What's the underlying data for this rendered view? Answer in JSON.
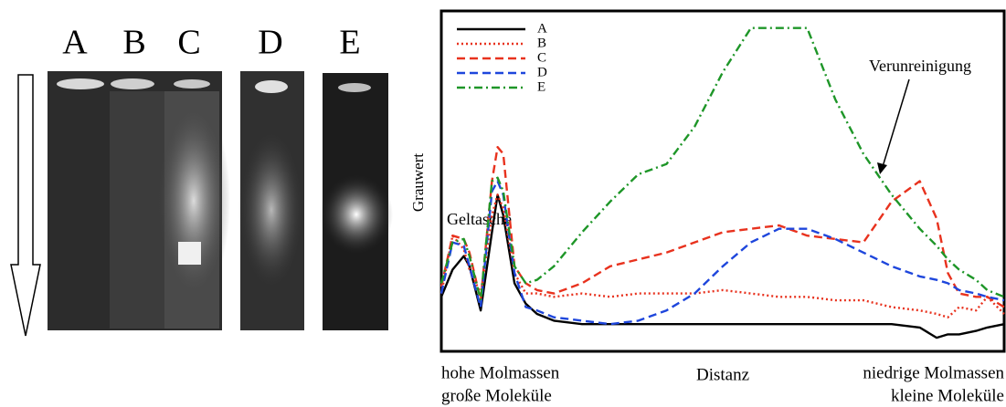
{
  "gel": {
    "lanes": [
      "A",
      "B",
      "C",
      "D",
      "E"
    ]
  },
  "chart_data": {
    "type": "line",
    "xlabel": "Distanz",
    "ylabel": "Grauwert",
    "x_end_labels": {
      "left": [
        "hohe Molmassen",
        "große Moleküle"
      ],
      "right": [
        "niedrige Molmassen",
        "kleine Moleküle"
      ]
    },
    "annotations": [
      "Geltasche",
      "Verunreinigung"
    ],
    "xlim": [
      0,
      100
    ],
    "ylim": [
      0,
      100
    ],
    "legend": "upper left",
    "x": [
      0,
      2,
      4,
      5,
      7,
      9,
      10,
      11,
      13,
      15,
      17,
      20,
      25,
      30,
      35,
      40,
      45,
      50,
      55,
      60,
      65,
      70,
      75,
      80,
      85,
      88,
      90,
      92,
      95,
      97,
      100
    ],
    "series": [
      {
        "name": "A",
        "color": "#000000",
        "linestyle": "solid",
        "values": [
          16,
          24,
          28,
          25,
          12,
          35,
          46,
          40,
          20,
          14,
          11,
          9,
          8,
          8,
          8,
          8,
          8,
          8,
          8,
          8,
          8,
          8,
          8,
          8,
          7,
          4,
          5,
          5,
          6,
          7,
          8
        ]
      },
      {
        "name": "B",
        "color": "#e8321e",
        "linestyle": "dotted",
        "values": [
          17,
          34,
          30,
          24,
          17,
          40,
          46,
          42,
          23,
          17,
          17,
          16,
          17,
          16,
          17,
          17,
          17,
          18,
          17,
          16,
          16,
          15,
          15,
          13,
          12,
          11,
          10,
          13,
          12,
          16,
          11
        ]
      },
      {
        "name": "C",
        "color": "#e8321e",
        "linestyle": "dashed",
        "values": [
          19,
          34,
          33,
          29,
          15,
          50,
          60,
          58,
          25,
          20,
          18,
          17,
          20,
          25,
          27,
          29,
          32,
          35,
          36,
          37,
          34,
          33,
          32,
          44,
          50,
          39,
          23,
          17,
          16,
          16,
          13
        ]
      },
      {
        "name": "D",
        "color": "#1e46dc",
        "linestyle": "dashed",
        "values": [
          17,
          32,
          31,
          25,
          13,
          47,
          50,
          46,
          23,
          13,
          12,
          10,
          9,
          8,
          9,
          12,
          17,
          25,
          32,
          36,
          36,
          33,
          29,
          25,
          22,
          21,
          20,
          18,
          17,
          16,
          15
        ]
      },
      {
        "name": "E",
        "color": "#1e9628",
        "linestyle": "dashdot",
        "values": [
          20,
          32,
          33,
          28,
          15,
          50,
          51,
          47,
          25,
          20,
          21,
          25,
          35,
          44,
          52,
          55,
          66,
          82,
          95,
          95,
          95,
          74,
          58,
          46,
          36,
          31,
          27,
          24,
          21,
          18,
          16
        ]
      }
    ]
  }
}
